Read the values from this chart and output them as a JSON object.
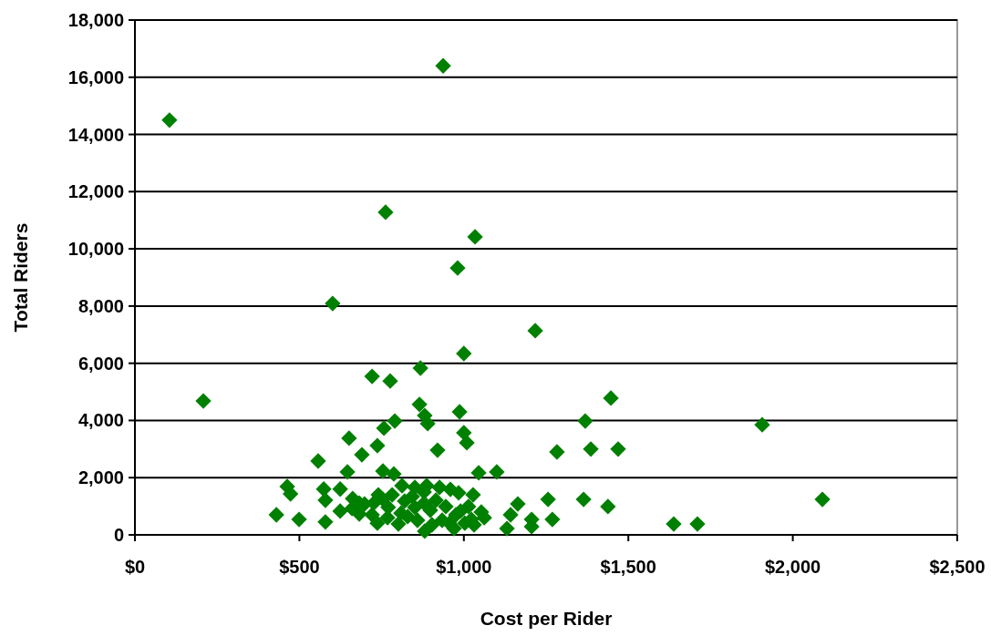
{
  "chart_data": {
    "type": "scatter",
    "xlabel": "Cost per Rider",
    "ylabel": "Total Riders",
    "marker": "diamond",
    "grid": "y",
    "xlim": [
      0,
      2500
    ],
    "xticks": [
      {
        "value": 0,
        "label": "$0"
      },
      {
        "value": 500,
        "label": "$500"
      },
      {
        "value": 1000,
        "label": "$1,000"
      },
      {
        "value": 1500,
        "label": "$1,500"
      },
      {
        "value": 2000,
        "label": "$2,000"
      },
      {
        "value": 2500,
        "label": "$2,500"
      }
    ],
    "ylim": [
      0,
      18000
    ],
    "yticks": [
      0,
      {
        "value": 2000,
        "label": "2,000"
      },
      {
        "value": 4000,
        "label": "4,000"
      },
      {
        "value": 6000,
        "label": "6,000"
      },
      {
        "value": 8000,
        "label": "8,000"
      },
      {
        "value": 10000,
        "label": "10,000"
      },
      {
        "value": 12000,
        "label": "12,000"
      },
      {
        "value": 14000,
        "label": "14,000"
      },
      {
        "value": 16000,
        "label": "16,000"
      },
      {
        "value": 18000,
        "label": "18,000"
      }
    ],
    "series": [
      {
        "color": "#008000",
        "x": [
          105,
          937,
          208,
          601,
          762,
          1034,
          981,
          1217,
          1000,
          868,
          721,
          776,
          865,
          1369,
          1447,
          1907,
          790,
          757,
          881,
          890,
          987,
          1000,
          1009,
          737,
          651,
          690,
          920,
          1045,
          1100,
          557,
          646,
          1283,
          1386,
          1469,
          2090,
          463,
          473,
          430,
          499,
          574,
          579,
          579,
          624,
          624,
          682,
          754,
          787,
          812,
          851,
          887,
          926,
          959,
          984,
          1028,
          1364,
          1256,
          1164,
          1142,
          1131,
          1206,
          1206,
          1269,
          1438,
          1638,
          1710,
          881,
          970,
          1031,
          1062,
          1053,
          1014,
          976,
          934,
          903,
          859,
          829,
          801,
          768,
          737,
          721,
          698,
          726,
          754,
          782,
          820,
          851,
          879,
          915,
          945,
          990,
          1023,
          662,
          682,
          740,
          770,
          809,
          898,
          956,
          1003,
          660,
          843,
          879
        ],
        "values": [
          14500,
          16400,
          4680,
          8090,
          11280,
          10420,
          9330,
          7140,
          6340,
          5830,
          5540,
          5380,
          4560,
          3980,
          4780,
          3850,
          3980,
          3730,
          4170,
          3890,
          4300,
          3570,
          3220,
          3120,
          3380,
          2800,
          2960,
          2170,
          2200,
          2580,
          2200,
          2900,
          3000,
          3000,
          1240,
          1690,
          1430,
          700,
          540,
          1600,
          1210,
          450,
          1600,
          830,
          730,
          2230,
          2130,
          1720,
          1660,
          1720,
          1660,
          1590,
          1470,
          1400,
          1240,
          1240,
          1080,
          700,
          220,
          540,
          290,
          540,
          990,
          380,
          380,
          130,
          220,
          350,
          600,
          800,
          990,
          700,
          510,
          350,
          510,
          640,
          380,
          600,
          410,
          700,
          1080,
          1110,
          1240,
          1400,
          1180,
          960,
          1110,
          1210,
          990,
          830,
          540,
          1270,
          1110,
          1400,
          960,
          760,
          860,
          410,
          410,
          920,
          1340,
          1500
        ]
      }
    ]
  }
}
